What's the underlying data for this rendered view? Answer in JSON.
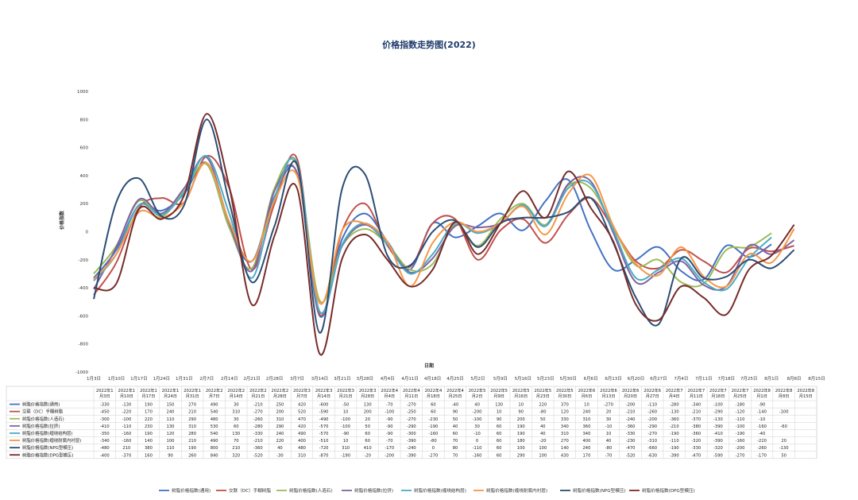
{
  "chart_data": {
    "type": "line",
    "title": "价格指数走势图(2022)",
    "xlabel": "日期",
    "ylabel": "价格指数",
    "ylim": [
      -1000,
      1000
    ],
    "yticks": [
      -1000,
      -800,
      -600,
      -400,
      -200,
      0,
      200,
      400,
      600,
      800,
      1000
    ],
    "grid": false,
    "legend_position": "bottom",
    "categories": [
      "1月3日",
      "1月10日",
      "1月17日",
      "1月24日",
      "1月31日",
      "2月7日",
      "2月14日",
      "2月21日",
      "2月28日",
      "3月7日",
      "3月14日",
      "3月21日",
      "3月28日",
      "4月4日",
      "4月11日",
      "4月18日",
      "4月25日",
      "5月2日",
      "5月9日",
      "5月16日",
      "5月23日",
      "5月30日",
      "6月6日",
      "6月13日",
      "6月20日",
      "6月27日",
      "7月4日",
      "7月11日",
      "7月18日",
      "7月25日",
      "8月1日",
      "8月8日",
      "8月15日"
    ],
    "table_headers": [
      [
        "2022年1",
        "月3日"
      ],
      [
        "2022年1",
        "月10日"
      ],
      [
        "2022年1",
        "月17日"
      ],
      [
        "2022年1",
        "月24日"
      ],
      [
        "2022年1",
        "月31日"
      ],
      [
        "2022年2",
        "月7日"
      ],
      [
        "2022年2",
        "月14日"
      ],
      [
        "2022年2",
        "月21日"
      ],
      [
        "2022年2",
        "月28日"
      ],
      [
        "2022年3",
        "月7日"
      ],
      [
        "2022年3",
        "月14日"
      ],
      [
        "2022年3",
        "月21日"
      ],
      [
        "2022年3",
        "月28日"
      ],
      [
        "2022年4",
        "月4日"
      ],
      [
        "2022年4",
        "月11日"
      ],
      [
        "2022年4",
        "月18日"
      ],
      [
        "2022年4",
        "月25日"
      ],
      [
        "2022年5",
        "月2日"
      ],
      [
        "2022年5",
        "月9日"
      ],
      [
        "2022年5",
        "月16日"
      ],
      [
        "2022年5",
        "月23日"
      ],
      [
        "2022年5",
        "月30日"
      ],
      [
        "2022年6",
        "月6日"
      ],
      [
        "2022年6",
        "月13日"
      ],
      [
        "2022年6",
        "月20日"
      ],
      [
        "2022年6",
        "月27日"
      ],
      [
        "2022年7",
        "月4日"
      ],
      [
        "2022年7",
        "月11日"
      ],
      [
        "2022年7",
        "月18日"
      ],
      [
        "2022年7",
        "月25日"
      ],
      [
        "2022年8",
        "月1日"
      ],
      [
        "2022年8",
        "月8日"
      ],
      [
        "2022年8",
        "月15日"
      ]
    ],
    "series": [
      {
        "name": "树脂价格指数(通用)",
        "color": "#4472c4",
        "values": [
          -330,
          -130,
          190,
          150,
          270,
          490,
          30,
          -210,
          250,
          420,
          -600,
          -50,
          130,
          -70,
          -270,
          60,
          -40,
          40,
          130,
          10,
          220,
          370,
          10,
          -270,
          -200,
          -110,
          -280,
          -340,
          -100,
          -180,
          -90,
          null,
          null
        ]
      },
      {
        "name": "交联（DC）手糊树脂",
        "color": "#c0504d",
        "values": [
          -450,
          -220,
          170,
          240,
          210,
          540,
          310,
          -270,
          200,
          520,
          -590,
          10,
          200,
          -100,
          -250,
          60,
          90,
          -200,
          10,
          90,
          -80,
          120,
          240,
          20,
          -210,
          -260,
          -130,
          -210,
          -290,
          -120,
          -140,
          -100,
          null
        ]
      },
      {
        "name": "树脂价格指数(人造石)",
        "color": "#9bbb59",
        "values": [
          -300,
          -100,
          220,
          110,
          290,
          480,
          30,
          -260,
          310,
          470,
          -490,
          -100,
          20,
          -90,
          -270,
          -230,
          50,
          -100,
          90,
          200,
          50,
          330,
          310,
          30,
          -240,
          -200,
          -360,
          -370,
          -130,
          -110,
          -10,
          null,
          null
        ]
      },
      {
        "name": "树脂价格指数(拉挤)",
        "color": "#8064a2",
        "values": [
          -410,
          -110,
          230,
          130,
          310,
          530,
          60,
          -280,
          290,
          420,
          -570,
          -100,
          50,
          -90,
          -290,
          -190,
          40,
          30,
          60,
          190,
          40,
          340,
          360,
          -10,
          -360,
          -290,
          -210,
          -380,
          -390,
          -100,
          -160,
          -60,
          null
        ]
      },
      {
        "name": "树脂价格指数(缠绕结构层)",
        "color": "#4bacc6",
        "values": [
          -350,
          -160,
          190,
          120,
          280,
          540,
          130,
          -330,
          240,
          490,
          -570,
          -90,
          60,
          -90,
          -300,
          -160,
          60,
          -10,
          60,
          190,
          40,
          310,
          340,
          10,
          -330,
          -270,
          -190,
          -360,
          -410,
          -190,
          -40,
          null,
          null
        ]
      },
      {
        "name": "树脂价格指数(缠绕耐腐内衬层)",
        "color": "#f79646",
        "values": [
          -340,
          -160,
          140,
          100,
          210,
          490,
          70,
          -210,
          220,
          400,
          -510,
          10,
          60,
          -70,
          -390,
          -80,
          70,
          0,
          60,
          180,
          -20,
          270,
          400,
          40,
          -230,
          -310,
          -110,
          -320,
          -390,
          -160,
          -220,
          20,
          null
        ]
      },
      {
        "name": "树脂价格指数(NPG型模压)",
        "color": "#2c4d75",
        "values": [
          -480,
          210,
          380,
          110,
          190,
          800,
          210,
          -360,
          40,
          480,
          -720,
          310,
          410,
          -170,
          -240,
          0,
          80,
          -110,
          60,
          100,
          100,
          140,
          240,
          -80,
          -470,
          -660,
          -190,
          -330,
          -320,
          -200,
          -260,
          -130,
          null
        ]
      },
      {
        "name": "树脂价格指数(DPG型模压)",
        "color": "#772c2a",
        "values": [
          -400,
          -370,
          160,
          90,
          260,
          840,
          320,
          -520,
          -30,
          310,
          -870,
          -190,
          -20,
          -200,
          -390,
          -270,
          70,
          -160,
          60,
          290,
          100,
          430,
          170,
          -70,
          -520,
          -630,
          -390,
          -470,
          -590,
          -270,
          -170,
          50,
          null
        ]
      }
    ]
  }
}
